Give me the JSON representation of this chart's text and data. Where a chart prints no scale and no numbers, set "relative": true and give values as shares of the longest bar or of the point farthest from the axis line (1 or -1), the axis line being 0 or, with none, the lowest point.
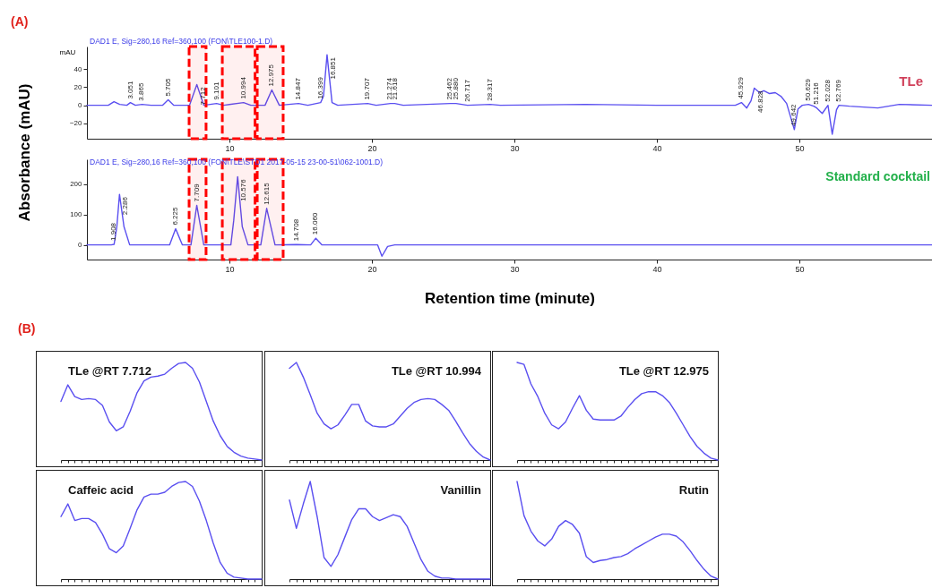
{
  "chart_data": [
    {
      "type": "line",
      "title": "TLe",
      "subtitle": "DAD1 E, Sig=280,16 Ref=360,100 (FON\\TLE100-1.D)",
      "ylabel": "mAU",
      "xlim": [
        0,
        59.3
      ],
      "ylim": [
        -37,
        65
      ],
      "xticks": [
        10,
        20,
        30,
        40,
        50
      ],
      "yticks": [
        -20,
        0,
        20,
        40
      ],
      "x": [
        0,
        1.5,
        1.9,
        2.3,
        2.8,
        3.05,
        3.4,
        3.87,
        4.5,
        5.3,
        5.7,
        6.1,
        7.2,
        7.712,
        8.2,
        9.1,
        9.6,
        10.994,
        11.5,
        12.5,
        12.975,
        13.5,
        14.847,
        15.5,
        16.4,
        16.6,
        16.85,
        17.2,
        17.6,
        19.7,
        20.3,
        21.3,
        21.6,
        22.2,
        25.5,
        25.9,
        26.7,
        28.3,
        29,
        35,
        40,
        45.5,
        45.93,
        46.3,
        46.6,
        46.83,
        47.2,
        47.5,
        47.9,
        48.3,
        48.7,
        49.1,
        49.64,
        49.9,
        50.2,
        50.63,
        51,
        51.216,
        51.6,
        52,
        52.3,
        52.6,
        52.77,
        53.5,
        55.5,
        57,
        59.3
      ],
      "series": [
        {
          "color": "#5a4ff0",
          "values": [
            0,
            0,
            4,
            1,
            0,
            3,
            0,
            1,
            0,
            0,
            6,
            0,
            0,
            23,
            0,
            2,
            0,
            3,
            0,
            0,
            17,
            0,
            2,
            0,
            3,
            10,
            56,
            3,
            0,
            2,
            0,
            2,
            2,
            0,
            2,
            2,
            0,
            1,
            0,
            1,
            0,
            0,
            3,
            -3,
            5,
            19,
            14,
            16,
            13,
            14,
            10,
            2,
            -27,
            -4,
            0,
            1,
            -1,
            -3,
            -9,
            0,
            -32,
            -5,
            0,
            -1,
            -3,
            1,
            0
          ]
        }
      ],
      "bands": [
        {
          "axis": "x",
          "from": 7.17,
          "to": 8.36,
          "color": "#ff0000"
        },
        {
          "axis": "x",
          "from": 9.5,
          "to": 11.8,
          "color": "#ff0000"
        },
        {
          "axis": "x",
          "from": 11.95,
          "to": 13.77,
          "color": "#ff0000"
        }
      ],
      "annotations": [
        "(A)",
        {
          "text": "3.051",
          "x": 3.051,
          "y": 3
        },
        {
          "text": "3.865",
          "x": 3.865,
          "y": 1
        },
        {
          "text": "5.705",
          "x": 5.705,
          "y": 6
        },
        {
          "text": "7.712",
          "x": 7.712,
          "y": 23
        },
        {
          "text": "9.101",
          "x": 9.101,
          "y": 2
        },
        {
          "text": "10.994",
          "x": 10.994,
          "y": 3
        },
        {
          "text": "12.975",
          "x": 12.975,
          "y": 17
        },
        {
          "text": "14.847",
          "x": 14.847,
          "y": 2
        },
        {
          "text": "16.399",
          "x": 16.399,
          "y": 3
        },
        {
          "text": "16.851",
          "x": 16.851,
          "y": 56
        },
        {
          "text": "19.707",
          "x": 19.707,
          "y": 2
        },
        {
          "text": "21.274",
          "x": 21.274,
          "y": 2
        },
        {
          "text": "21.618",
          "x": 21.618,
          "y": 2
        },
        {
          "text": "25.462",
          "x": 25.462,
          "y": 2
        },
        {
          "text": "25.880",
          "x": 25.88,
          "y": 2
        },
        {
          "text": "26.717",
          "x": 26.717,
          "y": 0
        },
        {
          "text": "28.317",
          "x": 28.317,
          "y": 1
        },
        {
          "text": "45.929",
          "x": 45.929,
          "y": 3
        },
        {
          "text": "46.828",
          "x": 46.828,
          "y": 19
        },
        {
          "text": "49.642",
          "x": 49.642,
          "y": -27
        },
        {
          "text": "50.629",
          "x": 50.629,
          "y": 1
        },
        {
          "text": "51.216",
          "x": 51.216,
          "y": -3
        },
        {
          "text": "52.028",
          "x": 52.028,
          "y": 0
        },
        {
          "text": "52.769",
          "x": 52.769,
          "y": 0
        }
      ]
    },
    {
      "type": "line",
      "title": "Standard cocktail",
      "subtitle": "DAD1 E, Sig=280,16 Ref=360,100 (FON\\TLE\\STD1 2017-05-15 23-00-51\\062-1001.D)",
      "xlabel": "Retention time (minute)",
      "ylabel": "Absorbance (mAU)",
      "xlim": [
        0,
        59.3
      ],
      "ylim": [
        -48,
        281
      ],
      "xticks": [
        10,
        20,
        30,
        40,
        50
      ],
      "yticks": [
        0,
        100,
        200
      ],
      "x": [
        0,
        1.7,
        1.908,
        2.1,
        2.286,
        2.6,
        3,
        5.8,
        6.225,
        6.7,
        7.3,
        7.709,
        8.2,
        10.1,
        10.3,
        10.576,
        10.9,
        11.3,
        12.2,
        12.615,
        13.2,
        14.708,
        15.7,
        16.06,
        16.5,
        20.4,
        20.7,
        21.1,
        21.6,
        59.3
      ],
      "series": [
        {
          "color": "#5a4ff0",
          "values": [
            0,
            0,
            2,
            60,
            166,
            60,
            0,
            0,
            53,
            0,
            0,
            130,
            0,
            0,
            80,
            224,
            60,
            0,
            0,
            120,
            0,
            1,
            0,
            22,
            0,
            0,
            -37,
            -5,
            0,
            0
          ]
        }
      ],
      "bands": [
        {
          "axis": "x",
          "from": 7.17,
          "to": 8.36,
          "color": "#ff0000"
        },
        {
          "axis": "x",
          "from": 9.5,
          "to": 11.8,
          "color": "#ff0000"
        },
        {
          "axis": "x",
          "from": 11.95,
          "to": 13.77,
          "color": "#ff0000"
        }
      ],
      "annotations": [
        {
          "text": "1.908",
          "x": 1.908,
          "y": 2
        },
        {
          "text": "2.286",
          "x": 2.286,
          "y": 166
        },
        {
          "text": "6.225",
          "x": 6.225,
          "y": 53
        },
        {
          "text": "7.709",
          "x": 7.709,
          "y": 130
        },
        {
          "text": "10.576",
          "x": 10.576,
          "y": 224
        },
        {
          "text": "12.615",
          "x": 12.615,
          "y": 120
        },
        {
          "text": "14.708",
          "x": 14.708,
          "y": 1
        },
        {
          "text": "16.060",
          "x": 16.06,
          "y": 22
        }
      ]
    },
    {
      "type": "line",
      "relative": true,
      "title": "TLe @RT 7.712",
      "annotations": [
        "(B)"
      ],
      "categories": [
        null,
        null,
        null,
        null,
        null,
        null,
        null,
        null,
        null,
        null,
        null,
        null,
        null,
        null,
        null,
        null,
        null,
        null,
        null,
        null,
        null,
        null,
        null,
        null,
        null,
        null,
        null,
        null,
        null,
        null
      ],
      "series": [
        {
          "color": "#5a4ff0",
          "values": [
            0.6,
            0.77,
            0.65,
            0.62,
            0.63,
            0.62,
            0.56,
            0.39,
            0.3,
            0.34,
            0.5,
            0.69,
            0.81,
            0.85,
            0.86,
            0.88,
            0.94,
            0.99,
            1,
            0.94,
            0.8,
            0.6,
            0.4,
            0.25,
            0.14,
            0.08,
            0.04,
            0.02,
            0.01,
            0
          ]
        }
      ]
    },
    {
      "type": "line",
      "relative": true,
      "title": "TLe @RT 10.994",
      "categories": [
        null,
        null,
        null,
        null,
        null,
        null,
        null,
        null,
        null,
        null,
        null,
        null,
        null,
        null,
        null,
        null,
        null,
        null,
        null,
        null,
        null,
        null,
        null,
        null,
        null,
        null,
        null,
        null,
        null,
        null
      ],
      "series": [
        {
          "color": "#5a4ff0",
          "values": [
            0.94,
            1,
            0.85,
            0.67,
            0.48,
            0.37,
            0.32,
            0.36,
            0.46,
            0.57,
            0.57,
            0.4,
            0.35,
            0.34,
            0.34,
            0.37,
            0.45,
            0.53,
            0.59,
            0.62,
            0.63,
            0.62,
            0.57,
            0.51,
            0.4,
            0.28,
            0.17,
            0.09,
            0.03,
            0
          ]
        }
      ]
    },
    {
      "type": "line",
      "relative": true,
      "title": "TLe @RT 12.975",
      "categories": [
        null,
        null,
        null,
        null,
        null,
        null,
        null,
        null,
        null,
        null,
        null,
        null,
        null,
        null,
        null,
        null,
        null,
        null,
        null,
        null,
        null,
        null,
        null,
        null,
        null,
        null,
        null,
        null,
        null,
        null
      ],
      "series": [
        {
          "color": "#5a4ff0",
          "values": [
            1,
            0.98,
            0.78,
            0.65,
            0.48,
            0.36,
            0.32,
            0.39,
            0.53,
            0.66,
            0.51,
            0.42,
            0.41,
            0.41,
            0.41,
            0.45,
            0.54,
            0.62,
            0.68,
            0.7,
            0.7,
            0.66,
            0.59,
            0.48,
            0.36,
            0.24,
            0.14,
            0.07,
            0.02,
            0
          ]
        }
      ]
    },
    {
      "type": "line",
      "relative": true,
      "title": "Caffeic acid",
      "categories": [
        null,
        null,
        null,
        null,
        null,
        null,
        null,
        null,
        null,
        null,
        null,
        null,
        null,
        null,
        null,
        null,
        null,
        null,
        null,
        null,
        null,
        null,
        null,
        null,
        null,
        null,
        null,
        null,
        null,
        null
      ],
      "series": [
        {
          "color": "#5a4ff0",
          "values": [
            0.64,
            0.77,
            0.6,
            0.62,
            0.62,
            0.58,
            0.46,
            0.31,
            0.27,
            0.34,
            0.52,
            0.71,
            0.84,
            0.87,
            0.87,
            0.89,
            0.95,
            0.99,
            1,
            0.95,
            0.8,
            0.6,
            0.37,
            0.17,
            0.06,
            0.02,
            0.01,
            0,
            0,
            0
          ]
        }
      ]
    },
    {
      "type": "line",
      "relative": true,
      "title": "Vanillin",
      "categories": [
        null,
        null,
        null,
        null,
        null,
        null,
        null,
        null,
        null,
        null,
        null,
        null,
        null,
        null,
        null,
        null,
        null,
        null,
        null,
        null,
        null,
        null,
        null,
        null,
        null,
        null,
        null,
        null,
        null,
        null
      ],
      "series": [
        {
          "color": "#5a4ff0",
          "values": [
            0.81,
            0.52,
            0.77,
            1,
            0.64,
            0.22,
            0.13,
            0.25,
            0.43,
            0.61,
            0.72,
            0.72,
            0.64,
            0.6,
            0.63,
            0.66,
            0.64,
            0.54,
            0.37,
            0.2,
            0.08,
            0.03,
            0.01,
            0.01,
            0,
            0,
            0,
            0,
            0,
            0
          ]
        }
      ]
    },
    {
      "type": "line",
      "relative": true,
      "title": "Rutin",
      "categories": [
        null,
        null,
        null,
        null,
        null,
        null,
        null,
        null,
        null,
        null,
        null,
        null,
        null,
        null,
        null,
        null,
        null,
        null,
        null,
        null,
        null,
        null,
        null,
        null,
        null,
        null,
        null,
        null,
        null,
        null
      ],
      "series": [
        {
          "color": "#5a4ff0",
          "values": [
            1,
            0.65,
            0.49,
            0.39,
            0.34,
            0.41,
            0.54,
            0.6,
            0.56,
            0.47,
            0.23,
            0.17,
            0.19,
            0.2,
            0.22,
            0.23,
            0.26,
            0.31,
            0.35,
            0.39,
            0.43,
            0.46,
            0.46,
            0.44,
            0.38,
            0.29,
            0.19,
            0.1,
            0.03,
            0
          ]
        }
      ]
    }
  ]
}
